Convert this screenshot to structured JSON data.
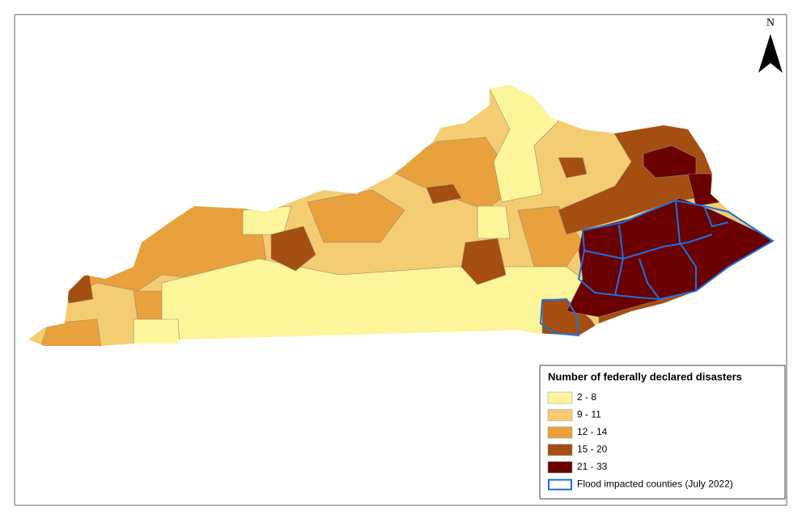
{
  "north_arrow": "N",
  "legend": {
    "title": "Number of federally declared disasters",
    "classes": [
      {
        "label": "2 - 8",
        "color": "#fdf59a"
      },
      {
        "label": "9 - 11",
        "color": "#f4cd72"
      },
      {
        "label": "12 - 14",
        "color": "#e8a13c"
      },
      {
        "label": "15 - 20",
        "color": "#a54e12"
      },
      {
        "label": "21 - 33",
        "color": "#6a0000"
      }
    ],
    "flood_label": "Flood impacted counties (July 2022)",
    "flood_color": "#1f6fe0"
  }
}
